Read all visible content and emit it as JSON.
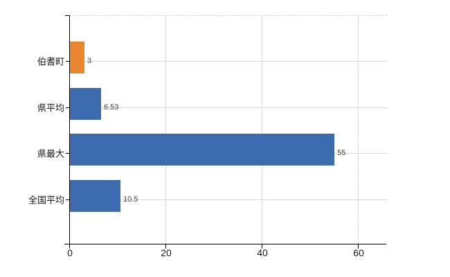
{
  "chart_data": {
    "type": "bar",
    "orientation": "horizontal",
    "title": "",
    "xlabel": "",
    "ylabel": "",
    "legend": "none",
    "grid": "on",
    "categories": [
      "伯耆町",
      "県平均",
      "県最大",
      "全国平均"
    ],
    "values": [
      3,
      6.53,
      55,
      10.5
    ],
    "value_labels": [
      "3",
      "6.53",
      "55",
      "10.5"
    ],
    "bar_colors": [
      "#EB8532",
      "#3C6BAF",
      "#3C6BAF",
      "#3C6BAF"
    ],
    "x_ticks": [
      0,
      20,
      40,
      60
    ],
    "x_tick_labels": [
      "0",
      "20",
      "40",
      "60"
    ],
    "xlim": [
      0,
      66
    ],
    "dashed_gridline_ticks": [
      60
    ],
    "dashed_top_border": true
  },
  "colors": {
    "background": "#FFFFFF",
    "axis": "#000000",
    "gridline_solid": "#D5DAD3",
    "gridline_dashed": "#D2CED2",
    "bar_orange": "#EB8532",
    "bar_blue": "#3C6BAF",
    "category_label": "#1A1A1A",
    "x_tick_label": "#1A1A1A",
    "value_label": "#3F3F3F"
  }
}
